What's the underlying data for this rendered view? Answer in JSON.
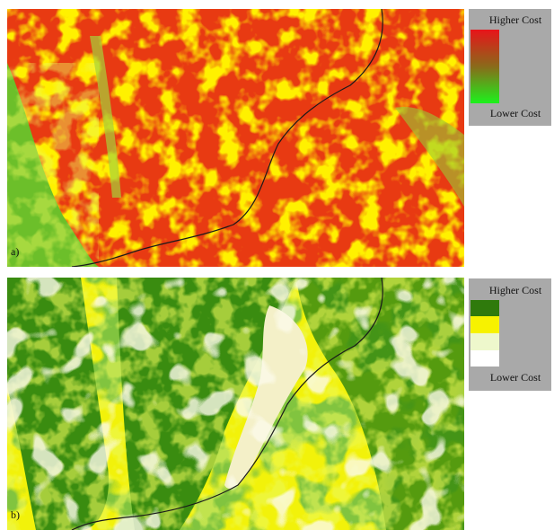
{
  "panels": [
    {
      "label": "a)",
      "legend": {
        "top": "Higher Cost",
        "bottom": "Lower Cost"
      }
    },
    {
      "label": "b)",
      "legend": {
        "top": "Higher Cost",
        "bottom": "Lower Cost"
      }
    }
  ]
}
